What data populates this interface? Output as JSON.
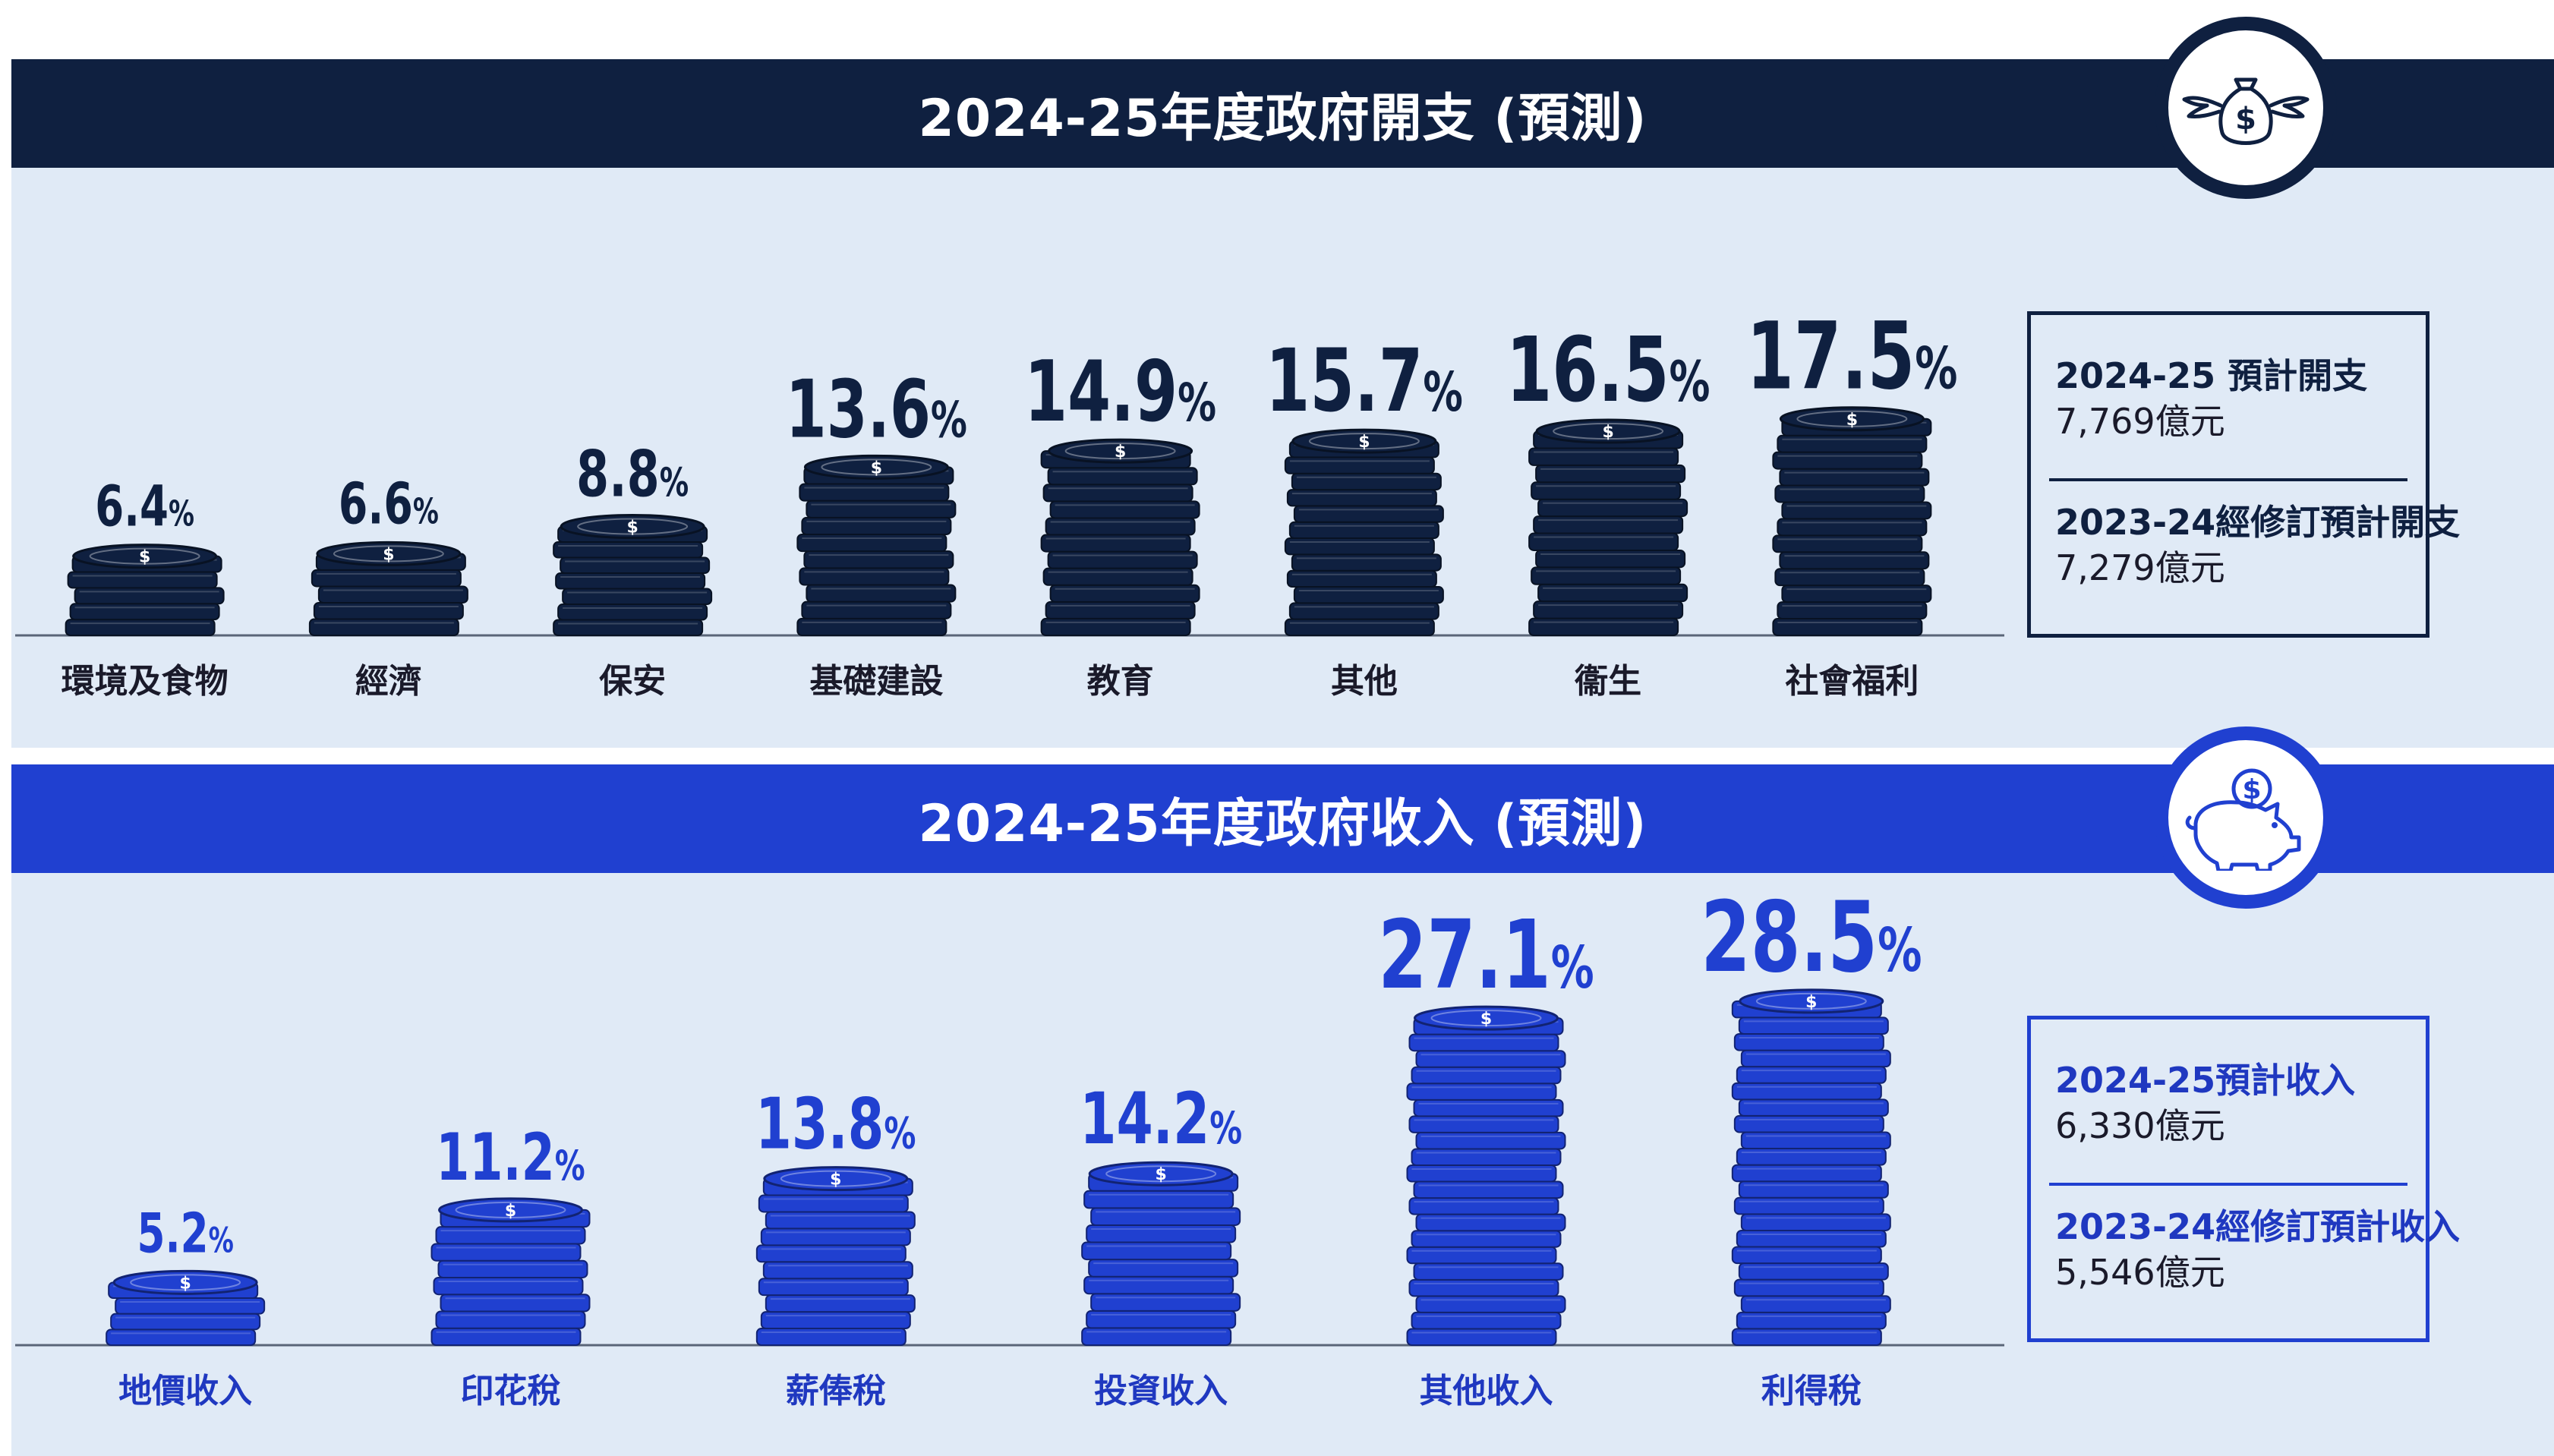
{
  "expenditure": {
    "title": "2024-25年度政府開支 (預測)",
    "icon": "money-bag-with-wings-icon",
    "info": {
      "current_label": "2024-25 預計開支",
      "current_value": "7,769億元",
      "previous_label": "2023-24經修訂預計開支",
      "previous_value": "7,279億元"
    }
  },
  "revenue": {
    "title": "2024-25年度政府收入 (預測)",
    "icon": "piggy-bank-icon",
    "info": {
      "current_label": "2024-25預計收入",
      "current_value": "6,330億元",
      "previous_label": "2023-24經修訂預計收入",
      "previous_value": "5,546億元"
    }
  },
  "colors": {
    "navy": "#0f2040",
    "blue": "#2040d0",
    "panel": "#e0eaf6"
  },
  "chart_data": [
    {
      "type": "bar",
      "title": "2024-25年度政府開支 (預測)",
      "categories": [
        "環境及食物",
        "經濟",
        "保安",
        "基礎建設",
        "教育",
        "其他",
        "衞生",
        "社會福利"
      ],
      "values": [
        6.4,
        6.6,
        8.8,
        13.6,
        14.9,
        15.7,
        16.5,
        17.5
      ],
      "labels": [
        "6.4",
        "6.6",
        "8.8",
        "13.6",
        "14.9",
        "15.7",
        "16.5",
        "17.5"
      ],
      "unit": "%",
      "mark_style": "coin-stack",
      "color": "#0f2040"
    },
    {
      "type": "bar",
      "title": "2024-25年度政府收入 (預測)",
      "categories": [
        "地價收入",
        "印花稅",
        "薪俸稅",
        "投資收入",
        "其他收入",
        "利得稅"
      ],
      "values": [
        5.2,
        11.2,
        13.8,
        14.2,
        27.1,
        28.5
      ],
      "labels": [
        "5.2",
        "11.2",
        "13.8",
        "14.2",
        "27.1",
        "28.5"
      ],
      "unit": "%",
      "mark_style": "coin-stack",
      "color": "#2040d0"
    }
  ]
}
